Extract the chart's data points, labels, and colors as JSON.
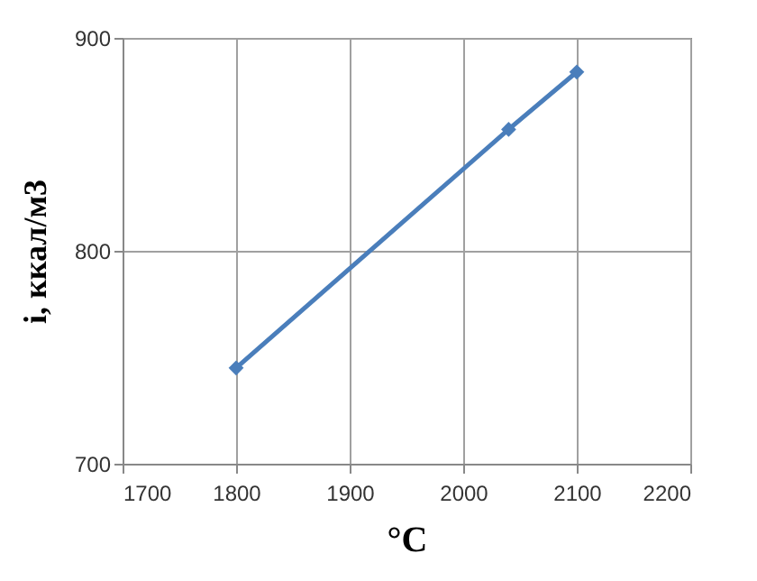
{
  "chart_data": {
    "type": "line",
    "xlabel": "°C",
    "ylabel": "i, ккал/м3",
    "x": [
      1800,
      2040,
      2100
    ],
    "series": [
      {
        "color": "#4a7ebb",
        "values": [
          745,
          857,
          884
        ]
      }
    ],
    "xlim": [
      1700,
      2200
    ],
    "xticks": [
      1700,
      1800,
      1900,
      2000,
      2100,
      2200
    ],
    "ylim": [
      700,
      900
    ],
    "yticks": [
      700,
      800,
      900
    ],
    "grid": true,
    "marker": "diamond",
    "line_style": "solid"
  }
}
